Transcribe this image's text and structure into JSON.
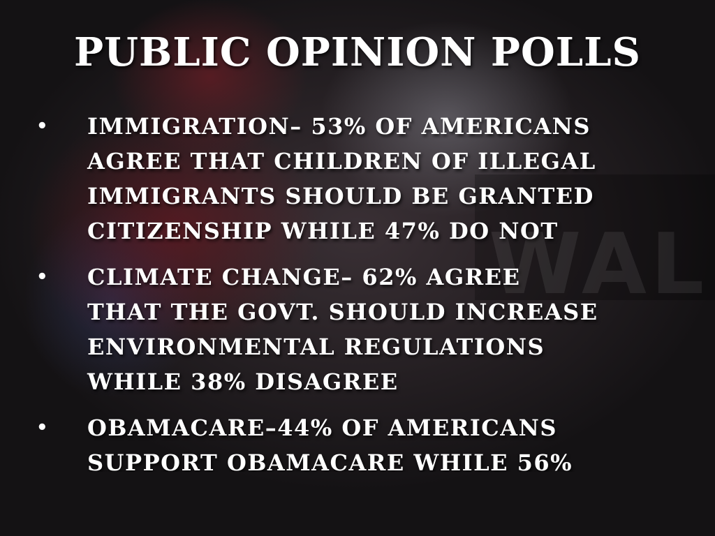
{
  "slide": {
    "title": "PUBLIC OPINION POLLS",
    "background_text": "WALL",
    "bullets": [
      {
        "marker": "•",
        "lines": [
          "IMMIGRATION– 53% OF AMERICANS",
          "AGREE THAT CHILDREN OF ILLEGAL",
          "IMMIGRANTS SHOULD BE GRANTED",
          "CITIZENSHIP WHILE 47% DO NOT"
        ]
      },
      {
        "marker": "•",
        "lines": [
          "CLIMATE CHANGE– 62% AGREE",
          "THAT THE GOVT. SHOULD INCREASE",
          "ENVIRONMENTAL REGULATIONS",
          "WHILE 38% DISAGREE"
        ]
      },
      {
        "marker": "•",
        "lines": [
          "OBAMACARE–44% OF AMERICANS",
          "SUPPORT OBAMACARE WHILE 56%"
        ]
      }
    ]
  }
}
